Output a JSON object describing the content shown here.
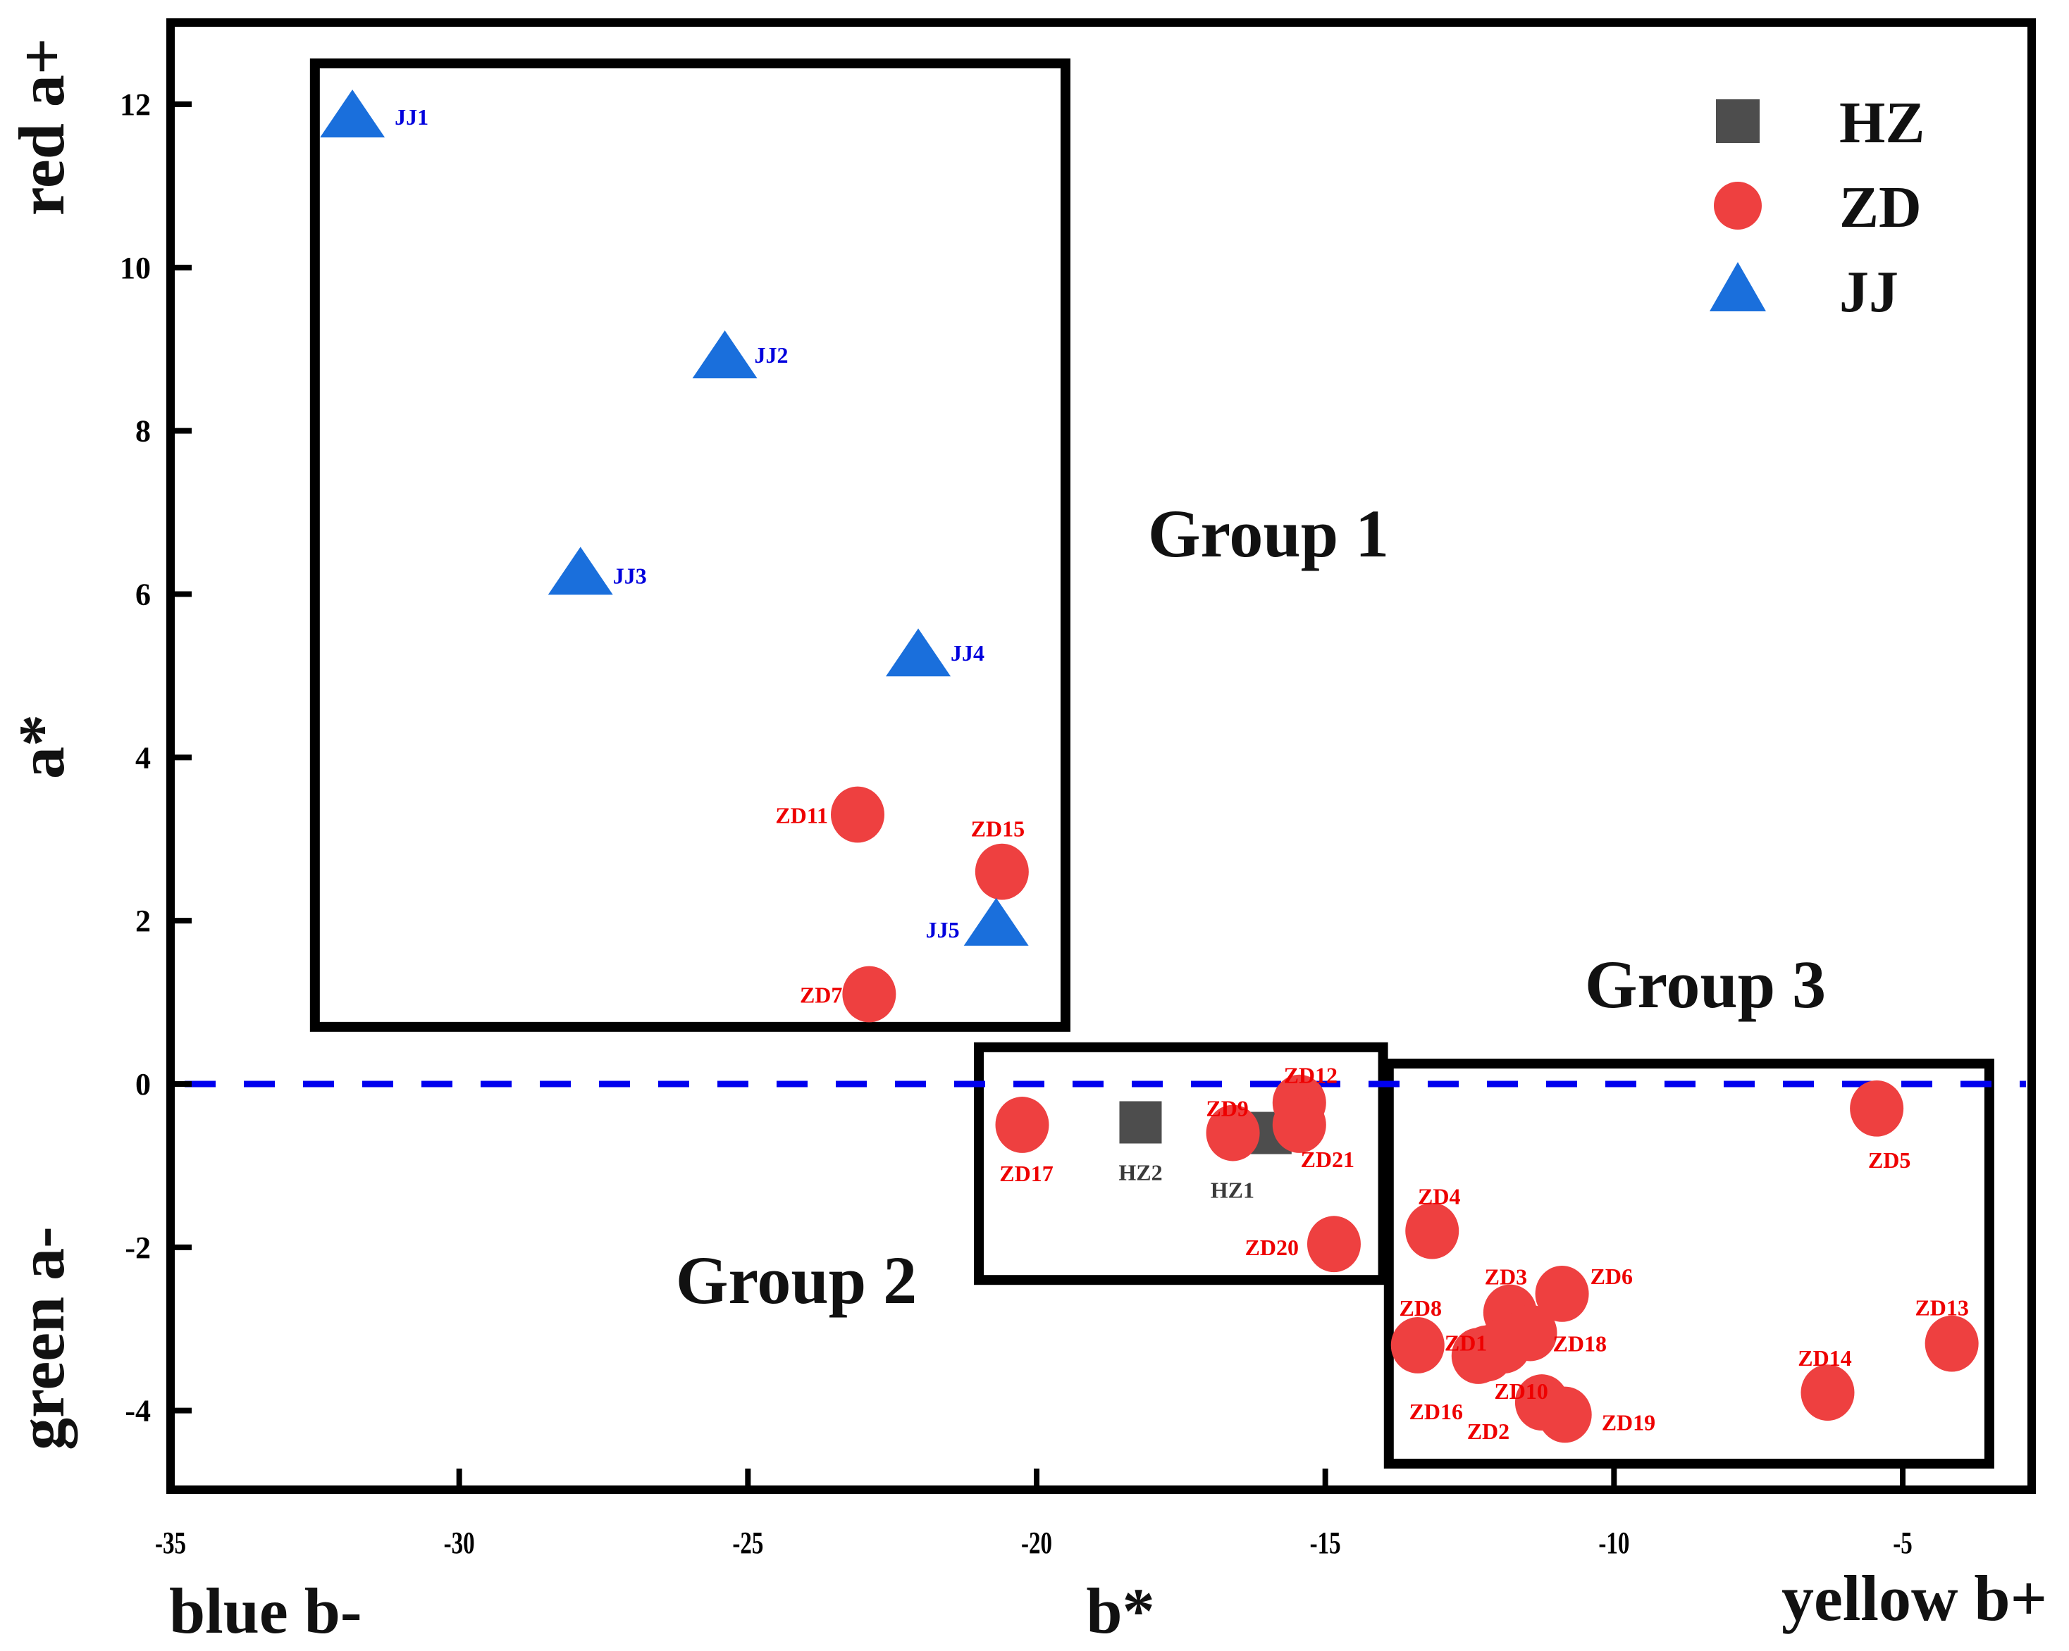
{
  "chart_data": {
    "type": "scatter",
    "title": "",
    "xlabel": "b*",
    "ylabel": "a*",
    "xlabel_left": "blue b-",
    "xlabel_right": "yellow b+",
    "ylabel_top": "red a+",
    "ylabel_bottom": "green a-",
    "xlim": [
      -35,
      -2.5
    ],
    "ylim": [
      -5,
      13
    ],
    "xticks": [
      -35,
      -30,
      -25,
      -20,
      -15,
      -10,
      -5
    ],
    "yticks": [
      -4,
      -2,
      0,
      2,
      4,
      6,
      8,
      10,
      12
    ],
    "grid": false,
    "legend_position": "top-right",
    "reference_line": {
      "axis": "y",
      "value": 0,
      "style": "dashed",
      "color": "#0000ee"
    },
    "series": [
      {
        "name": "HZ",
        "marker": "square",
        "color": "#4d4d4d",
        "label_color": "#3a3a3a",
        "points": [
          {
            "label": "HZ1",
            "x": -15.95,
            "y": -0.6
          },
          {
            "label": "HZ2",
            "x": -18.2,
            "y": -0.47
          }
        ]
      },
      {
        "name": "ZD",
        "marker": "circle",
        "color": "#ee4040",
        "label_color": "#ee0000",
        "points": [
          {
            "label": "ZD1",
            "x": -12.2,
            "y": -3.3
          },
          {
            "label": "ZD2",
            "x": -11.25,
            "y": -3.9
          },
          {
            "label": "ZD3",
            "x": -11.8,
            "y": -2.8
          },
          {
            "label": "ZD4",
            "x": -13.15,
            "y": -1.8
          },
          {
            "label": "ZD5",
            "x": -5.45,
            "y": -0.3
          },
          {
            "label": "ZD6",
            "x": -10.9,
            "y": -2.57
          },
          {
            "label": "ZD7",
            "x": -22.9,
            "y": 1.1
          },
          {
            "label": "ZD8",
            "x": -13.4,
            "y": -3.2
          },
          {
            "label": "ZD9",
            "x": -16.6,
            "y": -0.6
          },
          {
            "label": "ZD10",
            "x": -11.9,
            "y": -3.2
          },
          {
            "label": "ZD11",
            "x": -23.1,
            "y": 3.3
          },
          {
            "label": "ZD12",
            "x": -15.45,
            "y": -0.23
          },
          {
            "label": "ZD13",
            "x": -4.15,
            "y": -3.18
          },
          {
            "label": "ZD14",
            "x": -6.3,
            "y": -3.78
          },
          {
            "label": "ZD15",
            "x": -20.6,
            "y": 2.6
          },
          {
            "label": "ZD16",
            "x": -12.35,
            "y": -3.33
          },
          {
            "label": "ZD17",
            "x": -20.25,
            "y": -0.5
          },
          {
            "label": "ZD18",
            "x": -11.45,
            "y": -3.05
          },
          {
            "label": "ZD19",
            "x": -10.85,
            "y": -4.05
          },
          {
            "label": "ZD20",
            "x": -14.85,
            "y": -1.96
          },
          {
            "label": "ZD21",
            "x": -15.45,
            "y": -0.5
          }
        ]
      },
      {
        "name": "JJ",
        "marker": "triangle",
        "color": "#1a6fdc",
        "label_color": "#0000dd",
        "points": [
          {
            "label": "JJ1",
            "x": -31.85,
            "y": 11.8
          },
          {
            "label": "JJ2",
            "x": -25.4,
            "y": 8.85
          },
          {
            "label": "JJ3",
            "x": -27.9,
            "y": 6.2
          },
          {
            "label": "JJ4",
            "x": -22.05,
            "y": 5.2
          },
          {
            "label": "JJ5",
            "x": -20.7,
            "y": 1.9
          }
        ]
      }
    ],
    "groups": [
      {
        "name": "Group 1",
        "b_range": [
          -32.5,
          -19.5
        ],
        "a_range": [
          0.7,
          12.5
        ]
      },
      {
        "name": "Group 2",
        "b_range": [
          -21.0,
          -14.0
        ],
        "a_range": [
          -2.4,
          0.45
        ]
      },
      {
        "name": "Group 3",
        "b_range": [
          -13.9,
          -3.5
        ],
        "a_range": [
          -4.65,
          0.25
        ]
      }
    ]
  }
}
